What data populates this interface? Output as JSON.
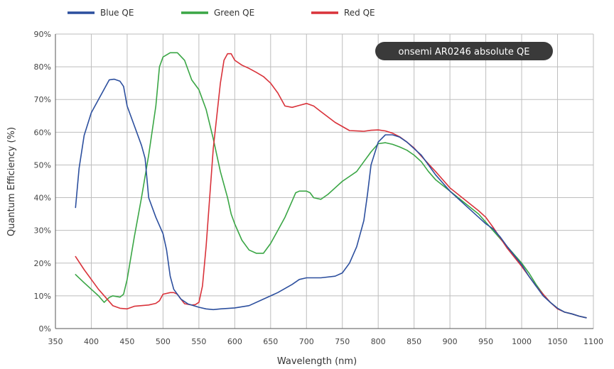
{
  "chart_data": {
    "type": "line",
    "title": "onsemi AR0246 absolute QE",
    "xlabel": "Wavelength (nm)",
    "ylabel": "Quantum Efficiency (%)",
    "xlim": [
      350,
      1100
    ],
    "ylim": [
      0,
      90
    ],
    "x_ticks": [
      350,
      400,
      450,
      500,
      550,
      600,
      650,
      700,
      750,
      800,
      850,
      900,
      950,
      1000,
      1050,
      1100
    ],
    "y_ticks": [
      0,
      10,
      20,
      30,
      40,
      50,
      60,
      70,
      80,
      90
    ],
    "y_tick_suffix": "%",
    "grid": true,
    "legend_position": "top",
    "series": [
      {
        "name": "Blue QE",
        "color": "#2c4f9e",
        "points": [
          [
            378,
            37
          ],
          [
            383,
            49
          ],
          [
            390,
            59
          ],
          [
            400,
            66
          ],
          [
            410,
            70
          ],
          [
            420,
            74
          ],
          [
            425,
            76
          ],
          [
            432,
            76.2
          ],
          [
            440,
            75.6
          ],
          [
            445,
            74
          ],
          [
            450,
            68
          ],
          [
            460,
            62
          ],
          [
            470,
            56
          ],
          [
            475,
            52
          ],
          [
            480,
            40
          ],
          [
            490,
            34
          ],
          [
            500,
            29
          ],
          [
            505,
            24
          ],
          [
            510,
            16
          ],
          [
            515,
            12
          ],
          [
            525,
            9
          ],
          [
            535,
            7.5
          ],
          [
            550,
            6.5
          ],
          [
            560,
            6
          ],
          [
            570,
            5.8
          ],
          [
            580,
            6
          ],
          [
            600,
            6.3
          ],
          [
            620,
            7
          ],
          [
            640,
            9
          ],
          [
            660,
            11
          ],
          [
            680,
            13.5
          ],
          [
            690,
            15
          ],
          [
            700,
            15.5
          ],
          [
            720,
            15.5
          ],
          [
            740,
            16
          ],
          [
            750,
            17
          ],
          [
            760,
            20
          ],
          [
            770,
            25
          ],
          [
            780,
            33
          ],
          [
            785,
            41
          ],
          [
            790,
            50
          ],
          [
            800,
            57
          ],
          [
            810,
            59.2
          ],
          [
            820,
            59.2
          ],
          [
            830,
            58.5
          ],
          [
            840,
            57
          ],
          [
            850,
            55
          ],
          [
            860,
            53
          ],
          [
            870,
            50
          ],
          [
            880,
            47
          ],
          [
            900,
            42
          ],
          [
            920,
            38
          ],
          [
            940,
            34
          ],
          [
            950,
            32
          ],
          [
            960,
            30.5
          ],
          [
            970,
            28
          ],
          [
            980,
            25
          ],
          [
            1000,
            19.5
          ],
          [
            1010,
            16
          ],
          [
            1020,
            13
          ],
          [
            1030,
            10
          ],
          [
            1040,
            8
          ],
          [
            1050,
            6.2
          ],
          [
            1060,
            5
          ],
          [
            1070,
            4.5
          ],
          [
            1080,
            3.8
          ],
          [
            1090,
            3.3
          ]
        ]
      },
      {
        "name": "Green QE",
        "color": "#3aa645",
        "points": [
          [
            378,
            16.5
          ],
          [
            390,
            14
          ],
          [
            400,
            12
          ],
          [
            410,
            10
          ],
          [
            418,
            8
          ],
          [
            425,
            9.5
          ],
          [
            430,
            10
          ],
          [
            440,
            9.6
          ],
          [
            445,
            10.5
          ],
          [
            450,
            15
          ],
          [
            460,
            28
          ],
          [
            470,
            40
          ],
          [
            480,
            53
          ],
          [
            490,
            68
          ],
          [
            495,
            80
          ],
          [
            500,
            83
          ],
          [
            510,
            84.3
          ],
          [
            520,
            84.3
          ],
          [
            530,
            82
          ],
          [
            540,
            76
          ],
          [
            550,
            73
          ],
          [
            560,
            67
          ],
          [
            570,
            58
          ],
          [
            580,
            48
          ],
          [
            590,
            40
          ],
          [
            595,
            35
          ],
          [
            600,
            32
          ],
          [
            610,
            27
          ],
          [
            620,
            24
          ],
          [
            630,
            23
          ],
          [
            640,
            23
          ],
          [
            650,
            26
          ],
          [
            660,
            30
          ],
          [
            670,
            34
          ],
          [
            680,
            39
          ],
          [
            685,
            41.5
          ],
          [
            690,
            42
          ],
          [
            700,
            42
          ],
          [
            705,
            41.5
          ],
          [
            710,
            40
          ],
          [
            720,
            39.5
          ],
          [
            730,
            41
          ],
          [
            740,
            43
          ],
          [
            750,
            45
          ],
          [
            760,
            46.5
          ],
          [
            770,
            48
          ],
          [
            780,
            51
          ],
          [
            790,
            54
          ],
          [
            800,
            56.5
          ],
          [
            810,
            56.8
          ],
          [
            820,
            56.3
          ],
          [
            830,
            55.5
          ],
          [
            840,
            54.5
          ],
          [
            850,
            53
          ],
          [
            860,
            51
          ],
          [
            870,
            48
          ],
          [
            880,
            45.5
          ],
          [
            900,
            42
          ],
          [
            920,
            38.5
          ],
          [
            940,
            35
          ],
          [
            950,
            32.5
          ],
          [
            960,
            30
          ],
          [
            980,
            25
          ],
          [
            1000,
            20
          ],
          [
            1010,
            17
          ],
          [
            1020,
            13.5
          ],
          [
            1030,
            10.5
          ],
          [
            1040,
            8
          ],
          [
            1050,
            6.2
          ],
          [
            1060,
            5
          ],
          [
            1070,
            4.5
          ],
          [
            1080,
            3.8
          ],
          [
            1090,
            3.3
          ]
        ]
      },
      {
        "name": "Red QE",
        "color": "#d9323a",
        "points": [
          [
            378,
            22
          ],
          [
            390,
            18
          ],
          [
            400,
            15
          ],
          [
            410,
            12
          ],
          [
            420,
            9.5
          ],
          [
            430,
            7
          ],
          [
            440,
            6.2
          ],
          [
            450,
            6
          ],
          [
            460,
            6.8
          ],
          [
            470,
            7
          ],
          [
            480,
            7.2
          ],
          [
            490,
            7.7
          ],
          [
            495,
            8.5
          ],
          [
            500,
            10.5
          ],
          [
            510,
            11
          ],
          [
            515,
            11
          ],
          [
            520,
            10.5
          ],
          [
            525,
            9
          ],
          [
            530,
            7.6
          ],
          [
            540,
            7.2
          ],
          [
            545,
            7.3
          ],
          [
            550,
            8
          ],
          [
            555,
            13
          ],
          [
            560,
            25
          ],
          [
            570,
            55
          ],
          [
            580,
            75
          ],
          [
            585,
            82
          ],
          [
            590,
            84
          ],
          [
            595,
            84
          ],
          [
            600,
            82
          ],
          [
            610,
            80.5
          ],
          [
            620,
            79.5
          ],
          [
            630,
            78.3
          ],
          [
            640,
            77
          ],
          [
            650,
            75
          ],
          [
            660,
            72
          ],
          [
            670,
            68
          ],
          [
            680,
            67.6
          ],
          [
            690,
            68.2
          ],
          [
            700,
            68.8
          ],
          [
            710,
            68
          ],
          [
            720,
            66.3
          ],
          [
            740,
            63
          ],
          [
            760,
            60.5
          ],
          [
            780,
            60.3
          ],
          [
            790,
            60.6
          ],
          [
            800,
            60.7
          ],
          [
            810,
            60.4
          ],
          [
            820,
            59.7
          ],
          [
            830,
            58.6
          ],
          [
            840,
            57
          ],
          [
            850,
            55.2
          ],
          [
            860,
            52.7
          ],
          [
            880,
            48
          ],
          [
            900,
            43
          ],
          [
            920,
            39.5
          ],
          [
            940,
            36
          ],
          [
            950,
            34
          ],
          [
            960,
            31
          ],
          [
            980,
            24.5
          ],
          [
            1000,
            19
          ],
          [
            1010,
            16
          ],
          [
            1020,
            13
          ],
          [
            1030,
            10.5
          ],
          [
            1040,
            8
          ],
          [
            1050,
            6
          ],
          [
            1060,
            5
          ],
          [
            1070,
            4.5
          ],
          [
            1080,
            3.8
          ],
          [
            1090,
            3.3
          ]
        ]
      }
    ]
  }
}
